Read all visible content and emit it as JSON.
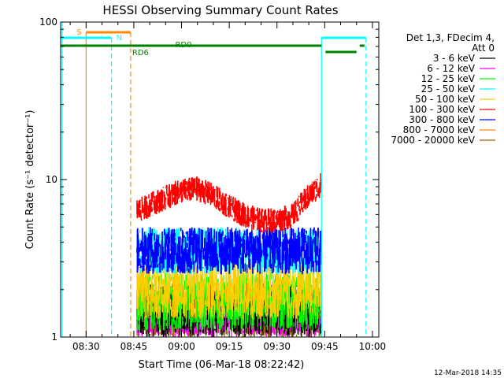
{
  "chart_data": {
    "type": "line",
    "title": "HESSI Observing Summary Count Rates",
    "xlabel": "Start Time (06-Mar-18 08:22:42)",
    "ylabel": "Count Rate (s⁻¹ detector⁻¹)",
    "yscale": "log",
    "ylim": [
      1,
      100
    ],
    "xlim": [
      "08:22",
      "10:02"
    ],
    "x_ticks": [
      "08:30",
      "08:45",
      "09:00",
      "09:15",
      "09:30",
      "09:45",
      "10:00"
    ],
    "y_ticks": [
      "1",
      "10",
      "100"
    ],
    "legend_title": [
      "Det 1,3, FDecim 4,",
      "Att 0"
    ],
    "legend_placement": "right",
    "series": [
      {
        "name": "3 - 6 keV",
        "color": "#000000",
        "start": "08:46",
        "end": "09:44",
        "level": [
          1.0,
          2.2
        ]
      },
      {
        "name": "6 - 12 keV",
        "color": "#ff00ff",
        "start": "08:46",
        "end": "09:44",
        "level": [
          1.0,
          2.0
        ]
      },
      {
        "name": "12 - 25 keV",
        "color": "#00ff00",
        "start": "08:46",
        "end": "09:44",
        "level": [
          1.1,
          2.6
        ]
      },
      {
        "name": "25 - 50 keV",
        "color": "#00ffff",
        "start": "08:46",
        "end": "09:44",
        "level": [
          2.5,
          5.0
        ]
      },
      {
        "name": "50 - 100 keV",
        "color": "#ffcc00",
        "start": "08:46",
        "end": "09:44",
        "level": [
          1.3,
          3.0
        ]
      },
      {
        "name": "100 - 300 keV",
        "color": "#ff0000",
        "start": "08:46",
        "end": "09:44",
        "level": [
          5.5,
          10.0
        ]
      },
      {
        "name": "300 - 800 keV",
        "color": "#0000ff",
        "start": "08:46",
        "end": "09:44",
        "level": [
          2.5,
          5.0
        ]
      },
      {
        "name": "800 - 7000 keV",
        "color": "#ff8800",
        "start": "08:46",
        "end": "09:44",
        "level": [
          1.3,
          2.0
        ]
      },
      {
        "name": "7000 - 20000 keV",
        "color": "#996600",
        "start": "08:46",
        "end": "09:44",
        "level": [
          1.0,
          1.5
        ]
      }
    ],
    "flags": [
      {
        "label": "S",
        "color": "#ff8800",
        "start": "08:30",
        "end": "08:44"
      },
      {
        "label": "N",
        "color": "#00ffff",
        "start": "08:22",
        "end": "08:38"
      },
      {
        "label": "N",
        "color": "#00ffff",
        "start": "09:44",
        "end": "09:58"
      },
      {
        "label": "RD6",
        "color": "#008000",
        "start": "08:22",
        "end": "09:44"
      },
      {
        "label": "RD0",
        "color": "#008000",
        "start": "08:22",
        "end": "09:44"
      }
    ],
    "red_profile": [
      [
        "08:47",
        6.5
      ],
      [
        "08:50",
        7.0
      ],
      [
        "08:55",
        7.8
      ],
      [
        "09:00",
        8.6
      ],
      [
        "09:05",
        8.9
      ],
      [
        "09:10",
        8.0
      ],
      [
        "09:15",
        6.8
      ],
      [
        "09:20",
        6.0
      ],
      [
        "09:25",
        5.6
      ],
      [
        "09:30",
        5.6
      ],
      [
        "09:35",
        6.0
      ],
      [
        "09:40",
        8.0
      ],
      [
        "09:44",
        9.5
      ]
    ]
  },
  "footer": {
    "timestamp": "12-Mar-2018 14:35"
  }
}
